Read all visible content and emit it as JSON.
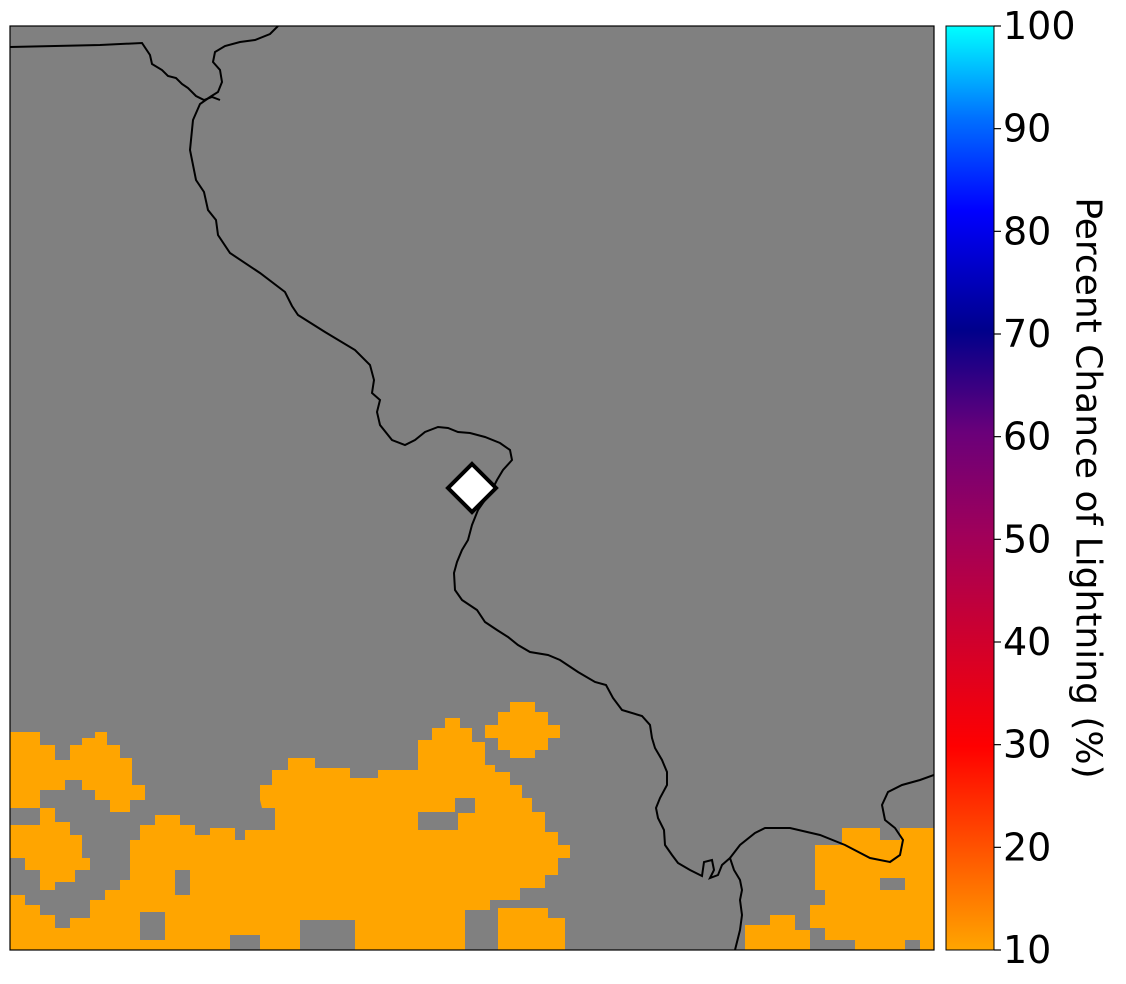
{
  "map": {
    "background_color": "#808080",
    "precip_color": "#ffa500",
    "boundary_color": "#000000",
    "site_marker": {
      "shape": "diamond",
      "fill": "#ffffff",
      "stroke": "#000000"
    }
  },
  "colorbar": {
    "label": "Percent Chance of Lightning (%)",
    "min": 10,
    "max": 100,
    "ticks": [
      "10",
      "20",
      "30",
      "40",
      "50",
      "60",
      "70",
      "80",
      "90",
      "100"
    ],
    "gradient_colors": [
      "#ffa500",
      "#ff0000",
      "#8b008b",
      "#00008b",
      "#0000ff",
      "#00ffff"
    ]
  }
}
